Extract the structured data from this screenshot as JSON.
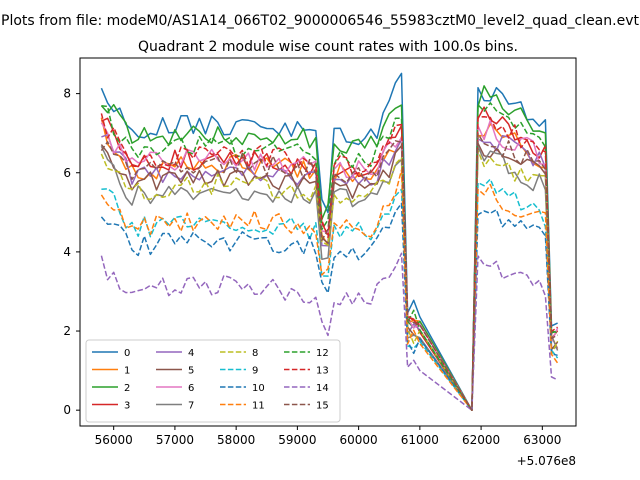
{
  "figure": {
    "suptitle": "Plots from file: modeM0/AS1A14_066T02_9000006546_55983cztM0_level2_quad_clean.evt"
  },
  "chart_data": {
    "type": "line",
    "title": "Quadrant 2 module wise count rates with 100.0s bins.",
    "xlabel": "",
    "ylabel": "",
    "x_offset_label": "+5.076e8",
    "xlim": [
      55450,
      63550
    ],
    "ylim": [
      -0.4,
      8.9
    ],
    "xticks": [
      56000,
      57000,
      58000,
      59000,
      60000,
      61000,
      62000,
      63000
    ],
    "xtick_labels": [
      "56000",
      "57000",
      "58000",
      "59000",
      "60000",
      "61000",
      "62000",
      "63000"
    ],
    "yticks": [
      0,
      2,
      4,
      6,
      8
    ],
    "ytick_labels": [
      "0",
      "2",
      "4",
      "6",
      "8"
    ],
    "grid": false,
    "legend": {
      "position": "lower-left",
      "columns": 4
    },
    "x_segments": [
      {
        "start": 55800,
        "end": 61050,
        "step": 100
      },
      {
        "start": 61850,
        "end": 63250,
        "step": 100
      }
    ],
    "series": [
      {
        "name": "0",
        "color": "#1f77b4",
        "dash": "solid",
        "level": 7.05,
        "start_value": 8.05,
        "spike_value": 8.45,
        "seed": 1
      },
      {
        "name": "1",
        "color": "#ff7f0e",
        "dash": "solid",
        "level": 6.05,
        "start_value": 7.2,
        "spike_value": 6.7,
        "seed": 2
      },
      {
        "name": "2",
        "color": "#2ca02c",
        "dash": "solid",
        "level": 6.85,
        "start_value": 7.95,
        "spike_value": 7.8,
        "seed": 3
      },
      {
        "name": "3",
        "color": "#d62728",
        "dash": "solid",
        "level": 6.2,
        "start_value": 7.45,
        "spike_value": 7.3,
        "seed": 4
      },
      {
        "name": "4",
        "color": "#9467bd",
        "dash": "solid",
        "level": 5.95,
        "start_value": 6.95,
        "spike_value": 6.8,
        "seed": 5
      },
      {
        "name": "5",
        "color": "#8c564b",
        "dash": "solid",
        "level": 5.7,
        "start_value": 6.65,
        "spike_value": 6.5,
        "seed": 6
      },
      {
        "name": "6",
        "color": "#e377c2",
        "dash": "solid",
        "level": 6.2,
        "start_value": 7.1,
        "spike_value": 7.0,
        "seed": 7
      },
      {
        "name": "7",
        "color": "#7f7f7f",
        "dash": "solid",
        "level": 5.45,
        "start_value": 6.4,
        "spike_value": 6.3,
        "seed": 8
      },
      {
        "name": "8",
        "color": "#bcbd22",
        "dash": "dashed",
        "level": 5.55,
        "start_value": 6.3,
        "spike_value": 6.2,
        "seed": 9
      },
      {
        "name": "9",
        "color": "#17becf",
        "dash": "dashed",
        "level": 4.6,
        "start_value": 5.85,
        "spike_value": 5.7,
        "seed": 10
      },
      {
        "name": "10",
        "color": "#1f77b4",
        "dash": "dashed",
        "level": 4.15,
        "start_value": 5.05,
        "spike_value": 5.2,
        "seed": 11
      },
      {
        "name": "11",
        "color": "#ff7f0e",
        "dash": "dashed",
        "level": 4.65,
        "start_value": 5.5,
        "spike_value": 5.9,
        "seed": 12
      },
      {
        "name": "12",
        "color": "#2ca02c",
        "dash": "dashed",
        "level": 6.5,
        "start_value": 7.65,
        "spike_value": 7.5,
        "seed": 13
      },
      {
        "name": "13",
        "color": "#d62728",
        "dash": "dashed",
        "level": 6.3,
        "start_value": 7.35,
        "spike_value": 7.2,
        "seed": 14
      },
      {
        "name": "14",
        "color": "#9467bd",
        "dash": "dashed",
        "level": 3.0,
        "start_value": 3.65,
        "spike_value": 3.8,
        "seed": 15
      },
      {
        "name": "15",
        "color": "#8c564b",
        "dash": "dashed",
        "level": 6.1,
        "start_value": 6.75,
        "spike_value": 6.9,
        "seed": 16
      }
    ]
  }
}
